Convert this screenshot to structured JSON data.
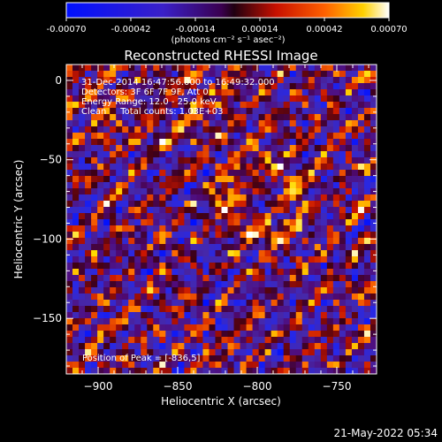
{
  "chart_data": {
    "type": "heatmap",
    "title": "Reconstructed RHESSI Image",
    "xlabel": "Heliocentric X (arcsec)",
    "ylabel": "Heliocentric Y (arcsec)",
    "xlim": [
      -920,
      -725
    ],
    "ylim": [
      -185,
      10
    ],
    "x_ticks": [
      -900,
      -850,
      -800,
      -750
    ],
    "y_ticks": [
      0,
      -50,
      -100,
      -150
    ],
    "colorbar": {
      "range": [
        -0.0007,
        0.0007
      ],
      "ticks": [
        "-0.00070",
        "-0.00042",
        "-0.00014",
        "0.00014",
        "0.00042",
        "0.00070"
      ],
      "unit_label": "(photons cm⁻² s⁻¹ asec⁻²)"
    },
    "annotations": [
      "31-Dec-2014 16:47:56.000 to 16:49:32.000",
      "Detectors: 3F 6F 7F 9F, Att 0",
      "Energy Range: 12.0 - 25.0 keV",
      "Clean     Total counts: 1.03E+03"
    ],
    "peak_label": "Position of Peak = [-836,5]",
    "grid": false
  },
  "timestamp": "21-May-2022 05:34"
}
